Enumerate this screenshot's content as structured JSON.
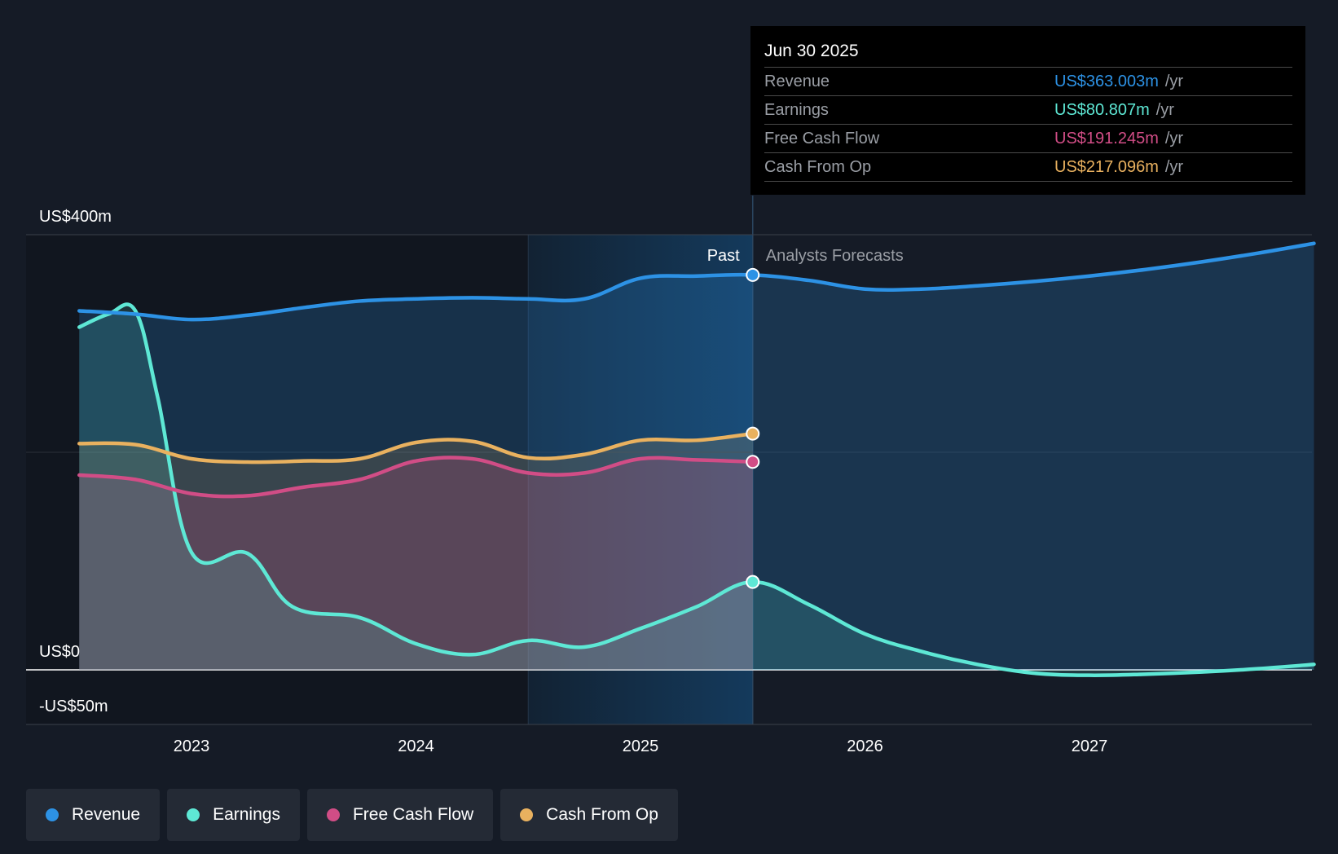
{
  "colors": {
    "revenue": "#2d92e5",
    "earnings": "#5ee8d5",
    "free_cash_flow": "#d14d86",
    "cash_from_op": "#e9b15f"
  },
  "chart_data": {
    "type": "line",
    "title": "",
    "ylabel": "",
    "xlabel": "",
    "ylim": [
      -50,
      400
    ],
    "x_ticks": [
      2023,
      2024,
      2025,
      2026,
      2027
    ],
    "y_labels": [
      {
        "value": 400,
        "label": "US$400m"
      },
      {
        "value": 0,
        "label": "US$0"
      },
      {
        "value": -50,
        "label": "-US$50m"
      }
    ],
    "past_label": "Past",
    "forecast_label": "Analysts Forecasts",
    "past_end": 2025.5,
    "highlight_start": 2024.5,
    "series": [
      {
        "name": "Revenue",
        "key": "revenue",
        "x": [
          2022.5,
          2022.75,
          2023.0,
          2023.25,
          2023.5,
          2023.75,
          2024.0,
          2024.25,
          2024.5,
          2024.75,
          2025.0,
          2025.25,
          2025.5,
          2025.75,
          2026.0,
          2026.25,
          2026.5,
          2026.75,
          2027.0,
          2027.25,
          2027.5,
          2027.75,
          2028.0
        ],
        "values": [
          330,
          327,
          322,
          326,
          333,
          339,
          341,
          342,
          341,
          341,
          360,
          362,
          363,
          358,
          350,
          350,
          353,
          357,
          362,
          368,
          375,
          383,
          392
        ]
      },
      {
        "name": "Earnings",
        "key": "earnings",
        "x": [
          2022.5,
          2022.63,
          2022.75,
          2022.85,
          2023.0,
          2023.25,
          2023.45,
          2023.75,
          2024.0,
          2024.25,
          2024.5,
          2024.75,
          2025.0,
          2025.25,
          2025.5,
          2025.75,
          2026.0,
          2026.25,
          2026.5,
          2026.75,
          2027.0,
          2027.25,
          2027.5,
          2027.75,
          2028.0
        ],
        "values": [
          315,
          327,
          330,
          250,
          108,
          107,
          58,
          48,
          24,
          14,
          27,
          21,
          38,
          58,
          80.8,
          60,
          33,
          17,
          5,
          -3,
          -5,
          -4,
          -2,
          1,
          5
        ]
      },
      {
        "name": "Free Cash Flow",
        "key": "free_cash_flow",
        "x": [
          2022.5,
          2022.75,
          2023.0,
          2023.25,
          2023.5,
          2023.75,
          2024.0,
          2024.25,
          2024.5,
          2024.75,
          2025.0,
          2025.25,
          2025.5
        ],
        "values": [
          179,
          175,
          162,
          160,
          168,
          175,
          192,
          194,
          181,
          181,
          194,
          193,
          191.2
        ]
      },
      {
        "name": "Cash From Op",
        "key": "cash_from_op",
        "x": [
          2022.5,
          2022.75,
          2023.0,
          2023.25,
          2023.5,
          2023.75,
          2024.0,
          2024.25,
          2024.5,
          2024.75,
          2025.0,
          2025.25,
          2025.5
        ],
        "values": [
          208,
          207,
          194,
          191,
          192,
          194,
          209,
          210,
          195,
          198,
          211,
          211,
          217.1
        ]
      }
    ]
  },
  "tooltip": {
    "date": "Jun 30 2025",
    "unit": "/yr",
    "rows": [
      {
        "name": "Revenue",
        "value": "US$363.003m",
        "key": "revenue"
      },
      {
        "name": "Earnings",
        "value": "US$80.807m",
        "key": "earnings"
      },
      {
        "name": "Free Cash Flow",
        "value": "US$191.245m",
        "key": "free_cash_flow"
      },
      {
        "name": "Cash From Op",
        "value": "US$217.096m",
        "key": "cash_from_op"
      }
    ]
  },
  "legend": [
    {
      "label": "Revenue",
      "key": "revenue"
    },
    {
      "label": "Earnings",
      "key": "earnings"
    },
    {
      "label": "Free Cash Flow",
      "key": "free_cash_flow"
    },
    {
      "label": "Cash From Op",
      "key": "cash_from_op"
    }
  ]
}
